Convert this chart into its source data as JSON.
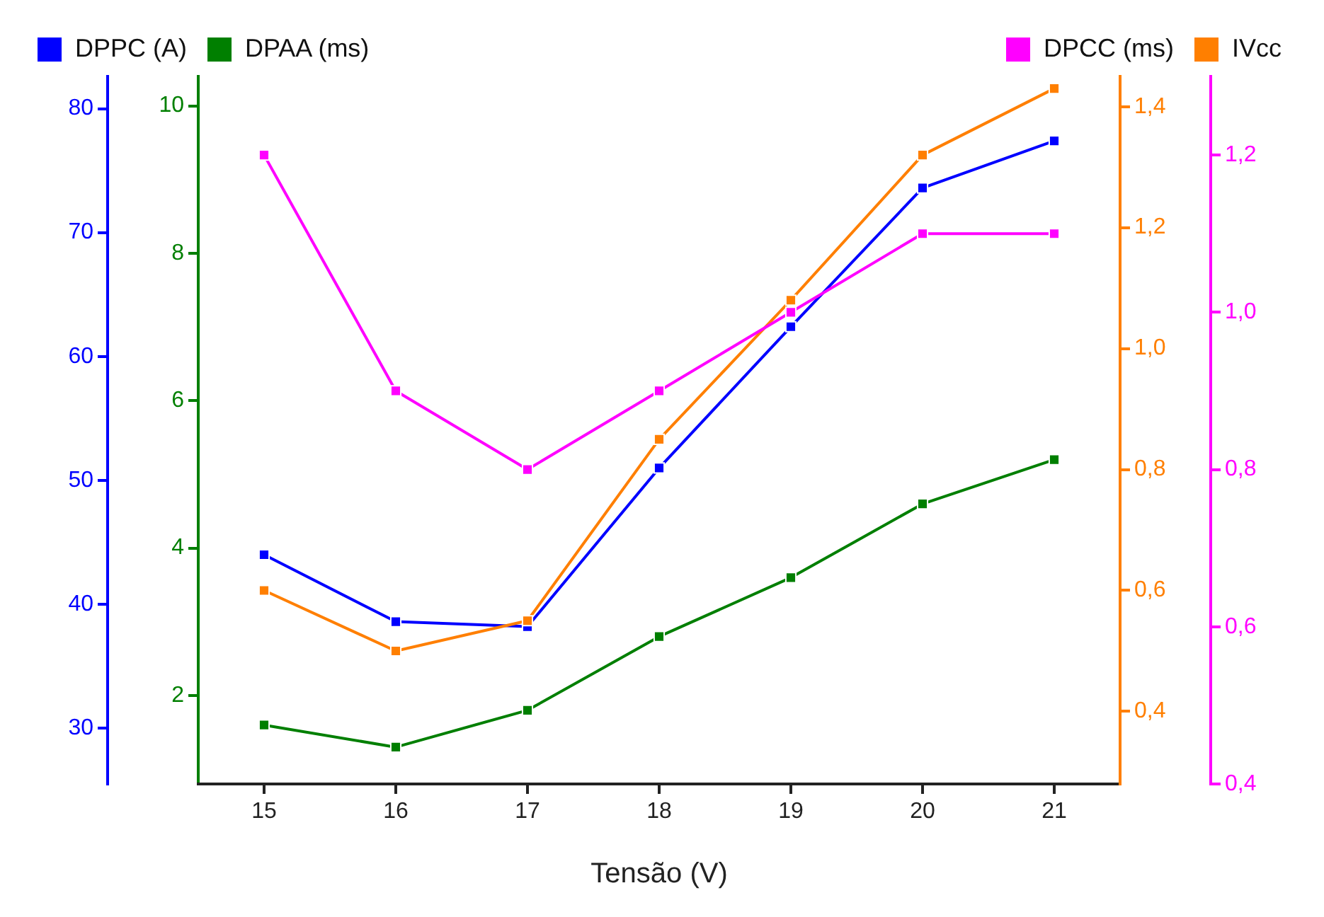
{
  "chart_data": [
    {
      "type": "line",
      "xlabel": "Tensão (V)",
      "x": [
        15,
        16,
        17,
        18,
        19,
        20,
        21
      ],
      "xlim": [
        14.5,
        21.5
      ],
      "xticks": [
        15,
        16,
        17,
        18,
        19,
        20,
        21
      ],
      "series": [
        {
          "name": "DPPC (A)",
          "color": "#0000ff",
          "values": [
            44,
            38.6,
            38.2,
            51,
            62.4,
            73.6,
            77.4
          ]
        },
        {
          "name": "DPAA (ms)",
          "color": "#007f00",
          "axis": "y2",
          "values": [
            1.6,
            1.3,
            1.8,
            2.8,
            3.6,
            4.6,
            5.2
          ]
        }
      ],
      "ylim": [
        25.5,
        82.6
      ],
      "yticks": [
        30,
        40,
        50,
        60,
        70,
        80
      ],
      "y2lim": [
        0.8,
        10.4
      ],
      "y2ticks": [
        2,
        4,
        6,
        8,
        10
      ],
      "grid": false,
      "legend": "top left",
      "marker": "square",
      "line_style": "solid"
    },
    {
      "type": "line",
      "x": [
        15,
        16,
        17,
        18,
        19,
        20,
        21
      ],
      "xlim": [
        14.5,
        21.5
      ],
      "xticks": [
        15,
        16,
        17,
        18,
        19,
        20,
        21
      ],
      "series": [
        {
          "name": "DPCC (ms)",
          "color": "#ff00ff",
          "values": [
            1.2,
            0.9,
            0.8,
            0.9,
            1.0,
            1.1,
            1.1
          ]
        },
        {
          "name": "IVcc",
          "color": "#ff7f00",
          "axis": "y2",
          "values": [
            0.6,
            0.5,
            0.55,
            0.85,
            1.08,
            1.32,
            1.43
          ]
        }
      ],
      "ylim": [
        0.4,
        1.3
      ],
      "yticks": [
        {
          "value": 0.4,
          "label": "0,4"
        },
        {
          "value": 0.6,
          "label": "0,6"
        },
        {
          "value": 0.8,
          "label": "0,8"
        },
        {
          "value": 1.0,
          "label": "1,0"
        },
        {
          "value": 1.2,
          "label": "1,2"
        }
      ],
      "y2lim": [
        0.28,
        1.45
      ],
      "y2ticks": [
        {
          "value": 0.4,
          "label": "0,4"
        },
        {
          "value": 0.6,
          "label": "0,6"
        },
        {
          "value": 0.8,
          "label": "0,8"
        },
        {
          "value": 1.0,
          "label": "1,0"
        },
        {
          "value": 1.2,
          "label": "1,2"
        },
        {
          "value": 1.4,
          "label": "1,4"
        }
      ],
      "tick_labels": "y",
      "grid": false,
      "legend": "top right",
      "marker": "square",
      "line_style": "solid"
    }
  ]
}
